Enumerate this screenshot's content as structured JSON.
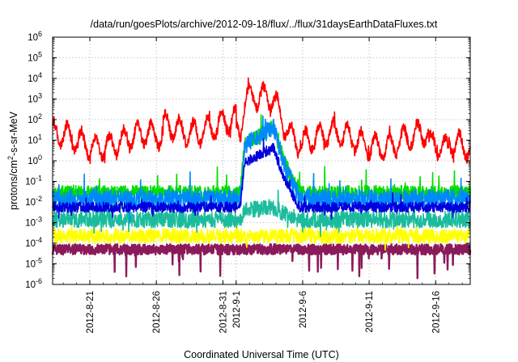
{
  "chart_data": {
    "type": "line",
    "title": "/data/run/goesPlots/archive/2012-09-18/flux/../flux/31daysEarthDataFluxes.txt",
    "xlabel": "Coordinated Universal Time (UTC)",
    "ylabel": "protons/cm2-s-sr-MeV",
    "ylabel_parts": {
      "before": "protons/cm",
      "sup": "2",
      "after": "-s-sr-MeV"
    },
    "yscale": "log",
    "ylim_exponents": [
      -6,
      6
    ],
    "y_ticks": [
      {
        "exp": "-6"
      },
      {
        "exp": "-5"
      },
      {
        "exp": "-4"
      },
      {
        "exp": "-3"
      },
      {
        "exp": "-2"
      },
      {
        "exp": "-1"
      },
      {
        "exp": "0"
      },
      {
        "exp": "1"
      },
      {
        "exp": "2"
      },
      {
        "exp": "3"
      },
      {
        "exp": "4"
      },
      {
        "exp": "5"
      },
      {
        "exp": "6"
      }
    ],
    "xlim_days_since_2012_08_18": [
      0.2,
      31.6
    ],
    "x_ticks": [
      {
        "label": "2012-8-21",
        "day": 3
      },
      {
        "label": "2012-8-26",
        "day": 8
      },
      {
        "label": "2012-8-31",
        "day": 13
      },
      {
        "label": "2012-9-1",
        "day": 14
      },
      {
        "label": "2012-9-6",
        "day": 19
      },
      {
        "label": "2012-9-11",
        "day": 24
      },
      {
        "label": "2012-9-16",
        "day": 29
      }
    ],
    "grid": true,
    "series": [
      {
        "color": "#8b1a5a",
        "base": -4.3,
        "noise": 0.25,
        "event": 0.0,
        "spikeUp": 0.0,
        "spikeDown": 0.7
      },
      {
        "color": "#ffff00",
        "base": -3.65,
        "noise": 0.35,
        "event": 0.0,
        "spikeUp": 0.3,
        "spikeDown": 0.2
      },
      {
        "color": "#1abc9c",
        "base": -2.85,
        "noise": 0.4,
        "event": 0.6,
        "spikeUp": 0.6,
        "spikeDown": 0.3
      },
      {
        "color": "#00dd00",
        "base": -1.55,
        "noise": 0.35,
        "event": 3.2,
        "spikeUp": 0.6,
        "spikeDown": 0.3
      },
      {
        "color": "#0088ff",
        "base": -1.85,
        "noise": 0.45,
        "event": 3.5,
        "spikeUp": 0.5,
        "spikeDown": 0.4
      },
      {
        "color": "#0000dd",
        "base": -2.25,
        "noise": 0.25,
        "event": 2.9,
        "spikeUp": 0.3,
        "spikeDown": 0.2
      },
      {
        "color": "#ff0000",
        "base": 1.0,
        "noise": 0.25,
        "event": 2.3,
        "spikeUp": 0.2,
        "spikeDown": 0.2
      }
    ],
    "event_window_days": [
      14.3,
      18.8
    ],
    "event_peak_day": 16.8
  }
}
